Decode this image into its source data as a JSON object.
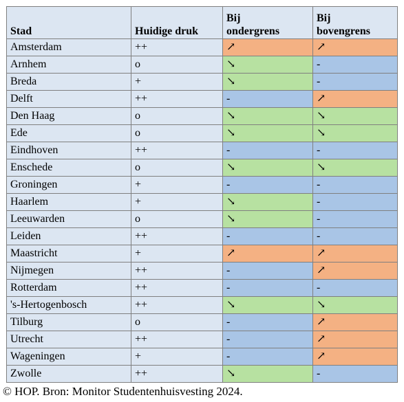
{
  "table": {
    "headers": {
      "city": "Stad",
      "pressure": "Huidige druk",
      "lower_line1": "Bij",
      "lower_line2": "ondergrens",
      "upper_line1": "Bij",
      "upper_line2": "bovengrens"
    },
    "rows": [
      {
        "city": "Amsterdam",
        "pressure": "++",
        "lower": "↗",
        "lower_state": "up",
        "upper": "↗",
        "upper_state": "up"
      },
      {
        "city": "Arnhem",
        "pressure": "o",
        "lower": "↘",
        "lower_state": "down",
        "upper": "-",
        "upper_state": "same"
      },
      {
        "city": "Breda",
        "pressure": "+",
        "lower": "↘",
        "lower_state": "down",
        "upper": "-",
        "upper_state": "same"
      },
      {
        "city": "Delft",
        "pressure": "++",
        "lower": "-",
        "lower_state": "same",
        "upper": "↗",
        "upper_state": "up"
      },
      {
        "city": "Den Haag",
        "pressure": "o",
        "lower": "↘",
        "lower_state": "down",
        "upper": "↘",
        "upper_state": "down"
      },
      {
        "city": "Ede",
        "pressure": "o",
        "lower": "↘",
        "lower_state": "down",
        "upper": "↘",
        "upper_state": "down"
      },
      {
        "city": "Eindhoven",
        "pressure": "++",
        "lower": "-",
        "lower_state": "same",
        "upper": "-",
        "upper_state": "same"
      },
      {
        "city": "Enschede",
        "pressure": "o",
        "lower": "↘",
        "lower_state": "down",
        "upper": "↘",
        "upper_state": "down"
      },
      {
        "city": "Groningen",
        "pressure": "+",
        "lower": "-",
        "lower_state": "same",
        "upper": "-",
        "upper_state": "same"
      },
      {
        "city": "Haarlem",
        "pressure": "+",
        "lower": "↘",
        "lower_state": "down",
        "upper": "-",
        "upper_state": "same"
      },
      {
        "city": "Leeuwarden",
        "pressure": "o",
        "lower": "↘",
        "lower_state": "down",
        "upper": "-",
        "upper_state": "same"
      },
      {
        "city": "Leiden",
        "pressure": "++",
        "lower": "-",
        "lower_state": "same",
        "upper": "-",
        "upper_state": "same"
      },
      {
        "city": "Maastricht",
        "pressure": "+",
        "lower": "↗",
        "lower_state": "up",
        "upper": "↗",
        "upper_state": "up"
      },
      {
        "city": "Nijmegen",
        "pressure": "++",
        "lower": "-",
        "lower_state": "same",
        "upper": "↗",
        "upper_state": "up"
      },
      {
        "city": "Rotterdam",
        "pressure": "++",
        "lower": "-",
        "lower_state": "same",
        "upper": "-",
        "upper_state": "same"
      },
      {
        "city": "'s-Hertogenbosch",
        "pressure": "++",
        "lower": "↘",
        "lower_state": "down",
        "upper": "↘",
        "upper_state": "down"
      },
      {
        "city": "Tilburg",
        "pressure": "o",
        "lower": "-",
        "lower_state": "same",
        "upper": "↗",
        "upper_state": "up"
      },
      {
        "city": "Utrecht",
        "pressure": "++",
        "lower": "-",
        "lower_state": "same",
        "upper": "↗",
        "upper_state": "up"
      },
      {
        "city": "Wageningen",
        "pressure": "+",
        "lower": "-",
        "lower_state": "same",
        "upper": "↗",
        "upper_state": "up"
      },
      {
        "city": "Zwolle",
        "pressure": "++",
        "lower": "↘",
        "lower_state": "down",
        "upper": "-",
        "upper_state": "same"
      }
    ]
  },
  "colors": {
    "increase": "#f4b183",
    "decrease": "#b7e1a1",
    "unchanged": "#a9c5e6",
    "neutral": "#dce6f2"
  },
  "caption": "© HOP. Bron: Monitor Studentenhuisvesting 2024."
}
